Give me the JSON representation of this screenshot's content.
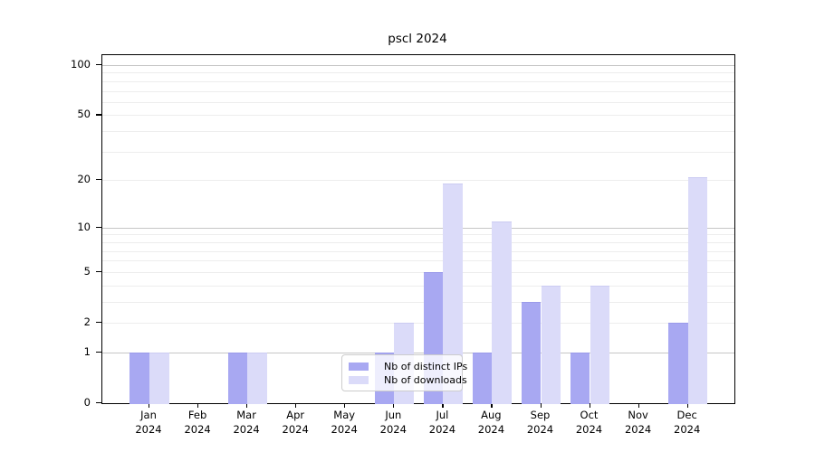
{
  "window": {
    "background": "#ffffff"
  },
  "chart_data": {
    "type": "bar",
    "title": "pscl 2024",
    "categories": [
      "Jan 2024",
      "Feb 2024",
      "Mar 2024",
      "Apr 2024",
      "May 2024",
      "Jun 2024",
      "Jul 2024",
      "Aug 2024",
      "Sep 2024",
      "Oct 2024",
      "Nov 2024",
      "Dec 2024"
    ],
    "series": [
      {
        "name": "Nb of distinct IPs",
        "color": "#a8a8f2",
        "edge_color": "#9a9aea",
        "values": [
          1,
          0,
          1,
          0,
          0,
          1,
          5,
          1,
          3,
          1,
          0,
          2
        ]
      },
      {
        "name": "Nb of downloads",
        "color": "#dbdbf9",
        "edge_color": "#ccccf2",
        "values": [
          1,
          0,
          1,
          0,
          0,
          2,
          19,
          11,
          4,
          4,
          0,
          21
        ]
      }
    ],
    "yscale": "log1p",
    "ylabel": "",
    "xlabel": "",
    "yticks": [
      0,
      1,
      2,
      5,
      10,
      20,
      50,
      100
    ],
    "minor_gridlines": [
      2,
      3,
      4,
      5,
      6,
      7,
      8,
      9,
      20,
      30,
      40,
      50,
      60,
      70,
      80,
      90
    ],
    "major_gridlines": [
      1,
      10,
      100
    ],
    "ylim": [
      0,
      116
    ],
    "grid": "horizontal",
    "legend_position": "inside-bottom-center",
    "axis_color": "#000000",
    "major_grid_color": "#c6c6c6",
    "minor_grid_color": "#ededed"
  }
}
